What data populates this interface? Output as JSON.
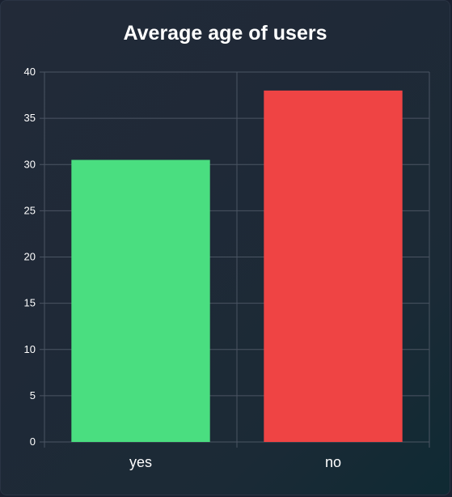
{
  "chart_data": {
    "type": "bar",
    "title": "Average age of users",
    "categories": [
      "yes",
      "no"
    ],
    "values": [
      30.5,
      38
    ],
    "colors": [
      "#4ade80",
      "#ef4444"
    ],
    "ylim": [
      0,
      40
    ],
    "yticks": [
      0,
      5,
      10,
      15,
      20,
      25,
      30,
      35,
      40
    ],
    "grid": true,
    "xlabel": "",
    "ylabel": ""
  }
}
